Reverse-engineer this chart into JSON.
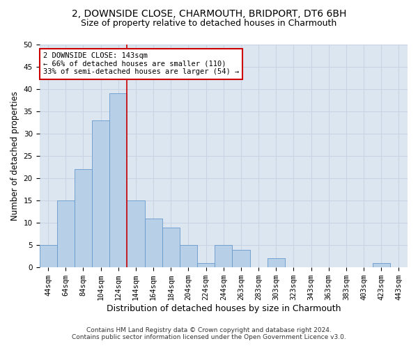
{
  "title_line1": "2, DOWNSIDE CLOSE, CHARMOUTH, BRIDPORT, DT6 6BH",
  "title_line2": "Size of property relative to detached houses in Charmouth",
  "xlabel": "Distribution of detached houses by size in Charmouth",
  "ylabel": "Number of detached properties",
  "bar_labels": [
    "44sqm",
    "64sqm",
    "84sqm",
    "104sqm",
    "124sqm",
    "144sqm",
    "164sqm",
    "184sqm",
    "204sqm",
    "224sqm",
    "244sqm",
    "263sqm",
    "283sqm",
    "303sqm",
    "323sqm",
    "343sqm",
    "363sqm",
    "383sqm",
    "403sqm",
    "423sqm",
    "443sqm"
  ],
  "bar_values": [
    5,
    15,
    22,
    33,
    39,
    15,
    11,
    9,
    5,
    1,
    5,
    4,
    0,
    2,
    0,
    0,
    0,
    0,
    0,
    1,
    0
  ],
  "bar_color": "#b8cfe8",
  "bar_edge_color": "#6699cc",
  "vline_color": "#cc0000",
  "annotation_text": "2 DOWNSIDE CLOSE: 143sqm\n← 66% of detached houses are smaller (110)\n33% of semi-detached houses are larger (54) →",
  "annotation_box_color": "#ffffff",
  "annotation_box_edge": "#cc0000",
  "ylim": [
    0,
    50
  ],
  "yticks": [
    0,
    5,
    10,
    15,
    20,
    25,
    30,
    35,
    40,
    45,
    50
  ],
  "grid_color": "#c8d4e4",
  "background_color": "#dce6f0",
  "footer_line1": "Contains HM Land Registry data © Crown copyright and database right 2024.",
  "footer_line2": "Contains public sector information licensed under the Open Government Licence v3.0.",
  "title_fontsize": 10,
  "subtitle_fontsize": 9,
  "tick_fontsize": 7.5,
  "xlabel_fontsize": 9,
  "ylabel_fontsize": 8.5,
  "annotation_fontsize": 7.5,
  "footer_fontsize": 6.5
}
